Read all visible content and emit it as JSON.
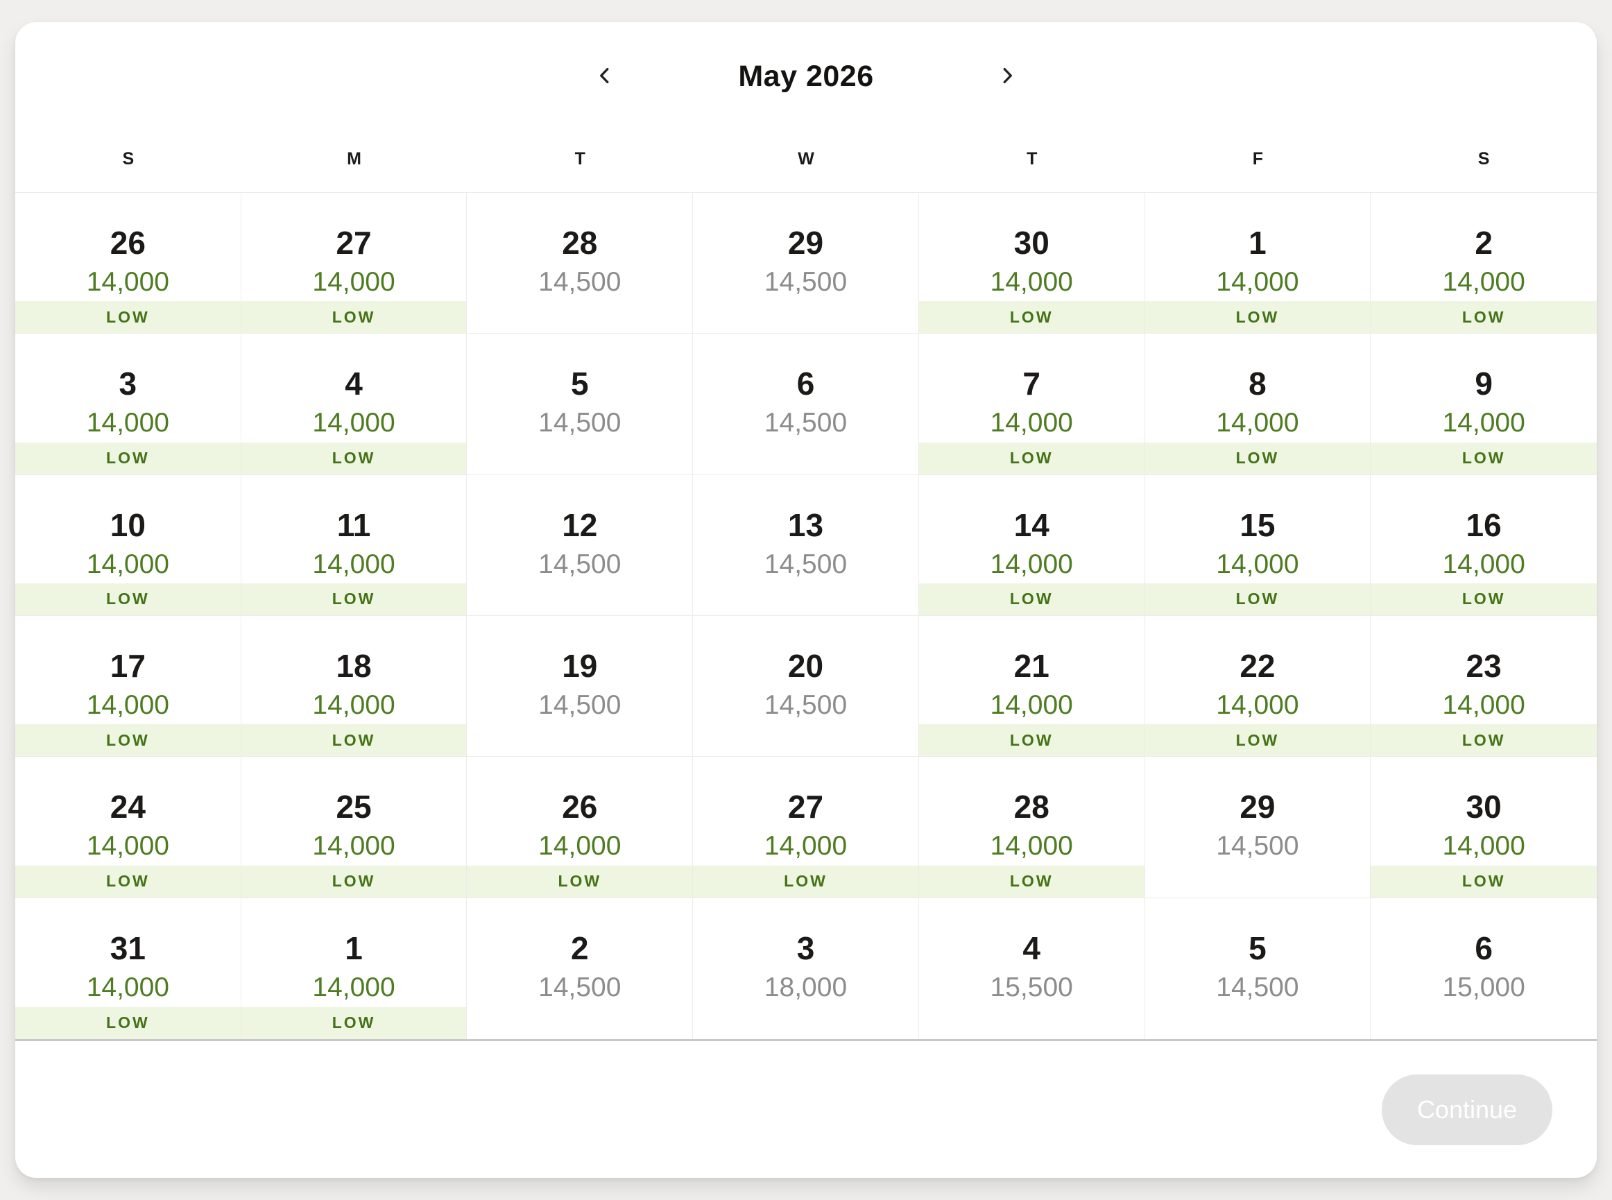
{
  "calendar": {
    "title": "May 2026",
    "prev_icon": "chevron-left",
    "next_icon": "chevron-right",
    "weekdays": [
      "S",
      "M",
      "T",
      "W",
      "T",
      "F",
      "S"
    ],
    "weeks": [
      [
        {
          "day": "26",
          "price": "14,000",
          "badge": "LOW"
        },
        {
          "day": "27",
          "price": "14,000",
          "badge": "LOW"
        },
        {
          "day": "28",
          "price": "14,500",
          "badge": ""
        },
        {
          "day": "29",
          "price": "14,500",
          "badge": ""
        },
        {
          "day": "30",
          "price": "14,000",
          "badge": "LOW"
        },
        {
          "day": "1",
          "price": "14,000",
          "badge": "LOW"
        },
        {
          "day": "2",
          "price": "14,000",
          "badge": "LOW"
        }
      ],
      [
        {
          "day": "3",
          "price": "14,000",
          "badge": "LOW"
        },
        {
          "day": "4",
          "price": "14,000",
          "badge": "LOW"
        },
        {
          "day": "5",
          "price": "14,500",
          "badge": ""
        },
        {
          "day": "6",
          "price": "14,500",
          "badge": ""
        },
        {
          "day": "7",
          "price": "14,000",
          "badge": "LOW"
        },
        {
          "day": "8",
          "price": "14,000",
          "badge": "LOW"
        },
        {
          "day": "9",
          "price": "14,000",
          "badge": "LOW"
        }
      ],
      [
        {
          "day": "10",
          "price": "14,000",
          "badge": "LOW"
        },
        {
          "day": "11",
          "price": "14,000",
          "badge": "LOW"
        },
        {
          "day": "12",
          "price": "14,500",
          "badge": ""
        },
        {
          "day": "13",
          "price": "14,500",
          "badge": ""
        },
        {
          "day": "14",
          "price": "14,000",
          "badge": "LOW"
        },
        {
          "day": "15",
          "price": "14,000",
          "badge": "LOW"
        },
        {
          "day": "16",
          "price": "14,000",
          "badge": "LOW"
        }
      ],
      [
        {
          "day": "17",
          "price": "14,000",
          "badge": "LOW"
        },
        {
          "day": "18",
          "price": "14,000",
          "badge": "LOW"
        },
        {
          "day": "19",
          "price": "14,500",
          "badge": ""
        },
        {
          "day": "20",
          "price": "14,500",
          "badge": ""
        },
        {
          "day": "21",
          "price": "14,000",
          "badge": "LOW"
        },
        {
          "day": "22",
          "price": "14,000",
          "badge": "LOW"
        },
        {
          "day": "23",
          "price": "14,000",
          "badge": "LOW"
        }
      ],
      [
        {
          "day": "24",
          "price": "14,000",
          "badge": "LOW"
        },
        {
          "day": "25",
          "price": "14,000",
          "badge": "LOW"
        },
        {
          "day": "26",
          "price": "14,000",
          "badge": "LOW"
        },
        {
          "day": "27",
          "price": "14,000",
          "badge": "LOW"
        },
        {
          "day": "28",
          "price": "14,000",
          "badge": "LOW"
        },
        {
          "day": "29",
          "price": "14,500",
          "badge": ""
        },
        {
          "day": "30",
          "price": "14,000",
          "badge": "LOW"
        }
      ],
      [
        {
          "day": "31",
          "price": "14,000",
          "badge": "LOW"
        },
        {
          "day": "1",
          "price": "14,000",
          "badge": "LOW"
        },
        {
          "day": "2",
          "price": "14,500",
          "badge": ""
        },
        {
          "day": "3",
          "price": "18,000",
          "badge": ""
        },
        {
          "day": "4",
          "price": "15,500",
          "badge": ""
        },
        {
          "day": "5",
          "price": "14,500",
          "badge": ""
        },
        {
          "day": "6",
          "price": "15,000",
          "badge": ""
        }
      ]
    ]
  },
  "footer": {
    "continue_label": "Continue"
  },
  "colors": {
    "page_bg": "#f0efed",
    "price_low": "#4e7c21",
    "price_regular": "#8c8c8c",
    "badge_bg": "#eef5e1",
    "badge_text": "#447317",
    "grid_border": "#ececea",
    "separator": "#c8c8c8",
    "button_bg": "#e3e3e3",
    "button_text": "#ffffff"
  }
}
